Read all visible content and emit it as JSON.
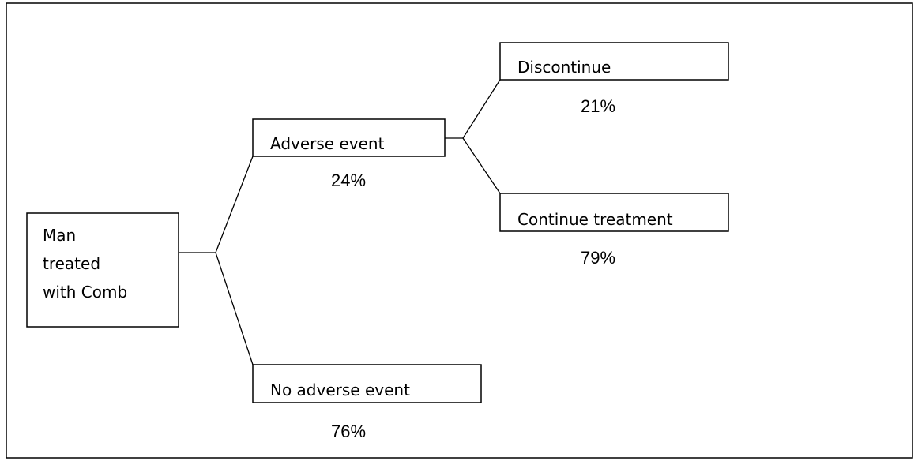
{
  "root": {
    "lines": [
      "Man",
      "treated",
      "with Comb"
    ]
  },
  "nodes": [
    {
      "label": "Adverse event",
      "probability": "24%"
    },
    {
      "label": "No adverse event",
      "probability": "76%"
    },
    {
      "label": "Discontinue",
      "probability": "21%"
    },
    {
      "label": "Continue treatment",
      "probability": "79%"
    }
  ]
}
